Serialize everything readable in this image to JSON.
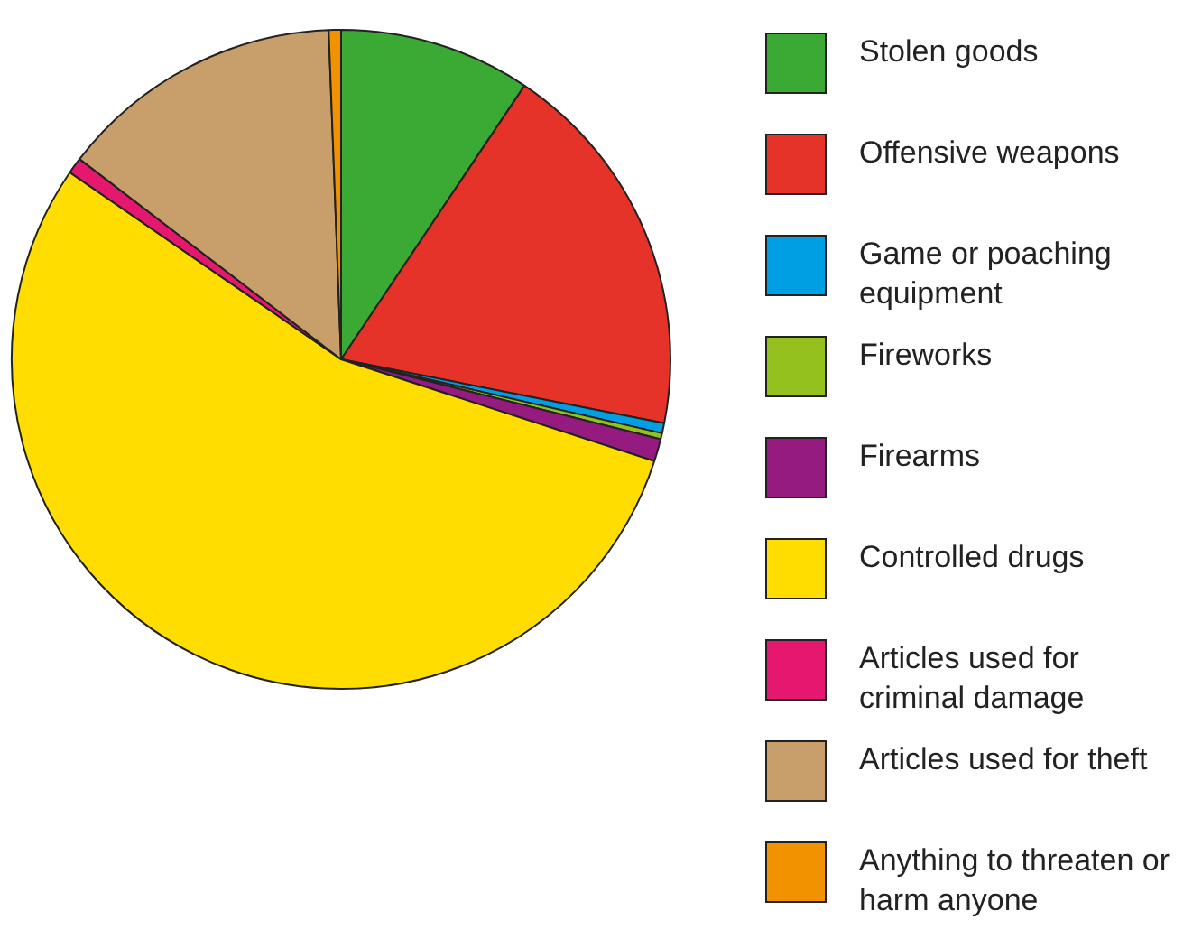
{
  "chart_data": {
    "type": "pie",
    "categories": [
      "Stolen goods",
      "Offensive weapons",
      "Game or poaching equipment",
      "Fireworks",
      "Firearms",
      "Controlled drugs",
      "Articles used for criminal damage",
      "Articles used for theft",
      "Anything to threaten or harm anyone"
    ],
    "values": [
      9.4,
      18.7,
      0.5,
      0.3,
      1.1,
      54.6,
      0.8,
      14.0,
      0.6
    ],
    "colors": [
      "#3aaa35",
      "#e63329",
      "#009fe3",
      "#95c11f",
      "#951b81",
      "#ffdd00",
      "#e6176f",
      "#c89f6a",
      "#f39200"
    ],
    "legend": "right"
  }
}
